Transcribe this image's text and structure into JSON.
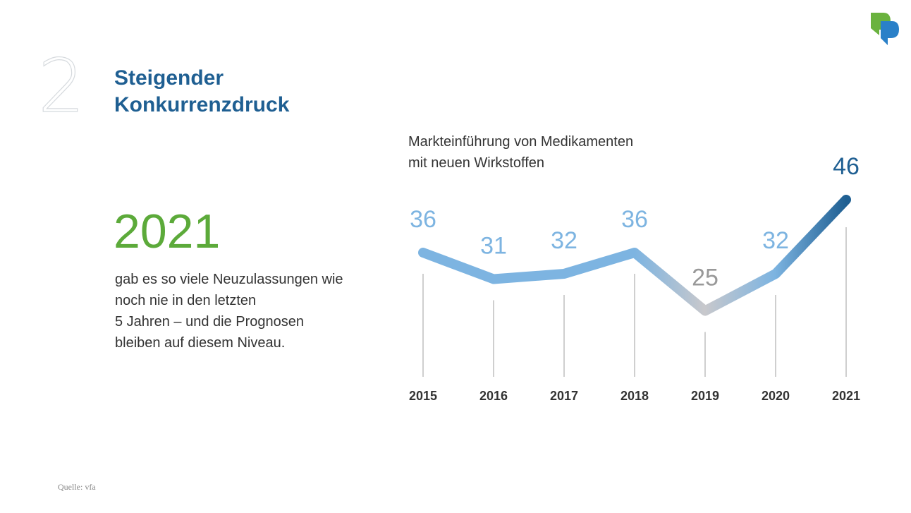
{
  "slide": {
    "number": "2",
    "headline_lines": [
      "Steigender",
      "Konkurrenzdruck"
    ],
    "highlight_year": "2021",
    "description_lines": [
      "gab es so viele Neuzulassungen wie",
      "noch nie in den letzten",
      "5 Jahren – und die Prognosen",
      "bleiben auf diesem Niveau."
    ],
    "source": "Quelle: vfa"
  },
  "colors": {
    "headline": "#1f5f92",
    "highlight": "#5caa3a",
    "line_light": "#7db4e1",
    "line_gray": "#c8c8cc",
    "line_dark": "#1f5f92",
    "label_light": "#7db4e1",
    "label_gray": "#999999",
    "label_dark": "#1f5f92",
    "logo_green": "#6ab23e",
    "logo_blue": "#2a80c8"
  },
  "chart_data": {
    "type": "line",
    "title_lines": [
      "Markteinführung von Medikamenten",
      "mit neuen Wirkstoffen"
    ],
    "categories": [
      "2015",
      "2016",
      "2017",
      "2018",
      "2019",
      "2020",
      "2021"
    ],
    "series": [
      {
        "values": [
          36,
          31,
          32,
          36,
          25,
          32,
          46
        ]
      }
    ],
    "ylim": [
      20,
      46
    ],
    "grid": false,
    "legend": "none",
    "xlabel": "",
    "ylabel": ""
  }
}
